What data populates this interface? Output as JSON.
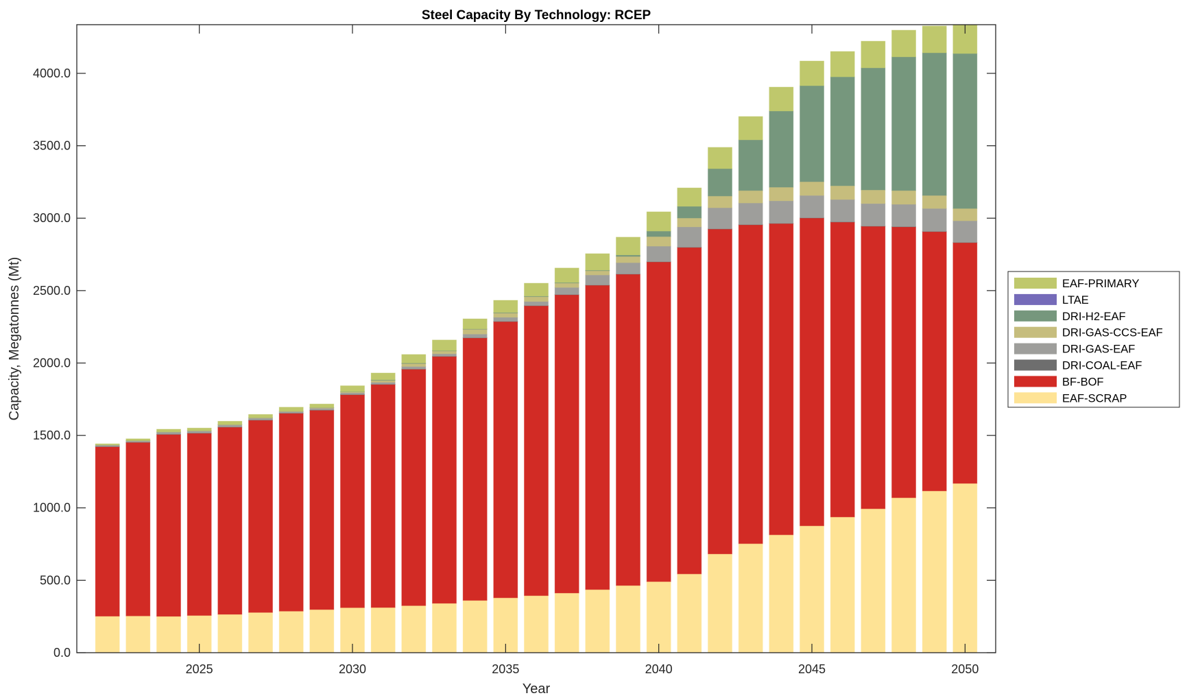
{
  "chart_data": {
    "type": "bar",
    "stacked": true,
    "title": "Steel Capacity By Technology: RCEP",
    "xlabel": "Year",
    "ylabel": "Capacity, Megatonnes (Mt)",
    "xlim": [
      2021,
      2051
    ],
    "ylim": [
      0,
      4336
    ],
    "grid": false,
    "legend_position": "right",
    "x_ticks": [
      2025,
      2030,
      2035,
      2040,
      2045,
      2050
    ],
    "x_tick_labels": [
      "2025",
      "2030",
      "2035",
      "2040",
      "2045",
      "2050"
    ],
    "y_ticks": [
      0,
      500,
      1000,
      1500,
      2000,
      2500,
      3000,
      3500,
      4000
    ],
    "y_tick_labels": [
      "0.0",
      "500.0",
      "1000.0",
      "1500.0",
      "2000.0",
      "2500.0",
      "3000.0",
      "3500.0",
      "4000.0"
    ],
    "categories": [
      2022,
      2023,
      2024,
      2025,
      2026,
      2027,
      2028,
      2029,
      2030,
      2031,
      2032,
      2033,
      2034,
      2035,
      2036,
      2037,
      2038,
      2039,
      2040,
      2041,
      2042,
      2043,
      2044,
      2045,
      2046,
      2047,
      2048,
      2049,
      2050
    ],
    "series": [
      {
        "name": "EAF-SCRAP",
        "color": "#fee395",
        "values": [
          252,
          254,
          251,
          257,
          265,
          278,
          287,
          298,
          311,
          312,
          325,
          341,
          361,
          379,
          394,
          412,
          436,
          464,
          491,
          544,
          682,
          753,
          814,
          876,
          937,
          994,
          1070,
          1117,
          1169
        ]
      },
      {
        "name": "BF-BOF",
        "color": "#d22b25",
        "values": [
          1170,
          1198,
          1256,
          1258,
          1292,
          1327,
          1366,
          1376,
          1470,
          1540,
          1632,
          1704,
          1812,
          1907,
          2001,
          2059,
          2101,
          2149,
          2207,
          2254,
          2243,
          2201,
          2149,
          2125,
          2036,
          1950,
          1870,
          1790,
          1662
        ]
      },
      {
        "name": "DRI-COAL-EAF",
        "color": "#6e6e6e",
        "values": [
          2,
          2,
          2,
          2,
          2,
          2,
          2,
          2,
          2,
          2,
          2,
          2,
          2,
          2,
          2,
          2,
          2,
          2,
          2,
          2,
          2,
          2,
          2,
          2,
          2,
          2,
          2,
          2,
          2
        ]
      },
      {
        "name": "DRI-GAS-EAF",
        "color": "#9e9e9b",
        "values": [
          8,
          8,
          13,
          13,
          13,
          12,
          9,
          12,
          12,
          13,
          17,
          17,
          25,
          28,
          28,
          49,
          69,
          78,
          107,
          140,
          145,
          149,
          155,
          154,
          154,
          155,
          154,
          158,
          149
        ]
      },
      {
        "name": "DRI-GAS-CCS-EAF",
        "color": "#c6bd7d",
        "values": [
          2,
          2,
          2,
          2,
          3,
          3,
          3,
          4,
          6,
          13,
          20,
          19,
          33,
          29,
          33,
          30,
          29,
          43,
          66,
          61,
          81,
          86,
          94,
          95,
          95,
          94,
          95,
          90,
          85
        ]
      },
      {
        "name": "DRI-H2-EAF",
        "color": "#76977d",
        "values": [
          1,
          1,
          1,
          1,
          1,
          1,
          1,
          1,
          2,
          4,
          4,
          3,
          3,
          4,
          4,
          4,
          4,
          10,
          38,
          81,
          189,
          350,
          526,
          663,
          752,
          843,
          923,
          985,
          1070
        ]
      },
      {
        "name": "LTAE",
        "color": "#756bb9",
        "values": [
          0,
          0,
          0,
          0,
          0,
          0,
          0,
          0,
          0,
          0,
          0,
          0,
          0,
          0,
          0,
          0,
          0,
          0,
          0,
          0,
          0,
          0,
          0,
          0,
          0,
          0,
          0,
          0,
          0
        ]
      },
      {
        "name": "EAF-PRIMARY",
        "color": "#bfc86c",
        "values": [
          7,
          12,
          18,
          18,
          22,
          22,
          27,
          24,
          40,
          47,
          59,
          73,
          69,
          84,
          89,
          100,
          114,
          123,
          133,
          127,
          147,
          161,
          165,
          170,
          175,
          184,
          184,
          185,
          223
        ]
      }
    ],
    "legend_order": [
      "EAF-PRIMARY",
      "LTAE",
      "DRI-H2-EAF",
      "DRI-GAS-CCS-EAF",
      "DRI-GAS-EAF",
      "DRI-COAL-EAF",
      "BF-BOF",
      "EAF-SCRAP"
    ]
  }
}
